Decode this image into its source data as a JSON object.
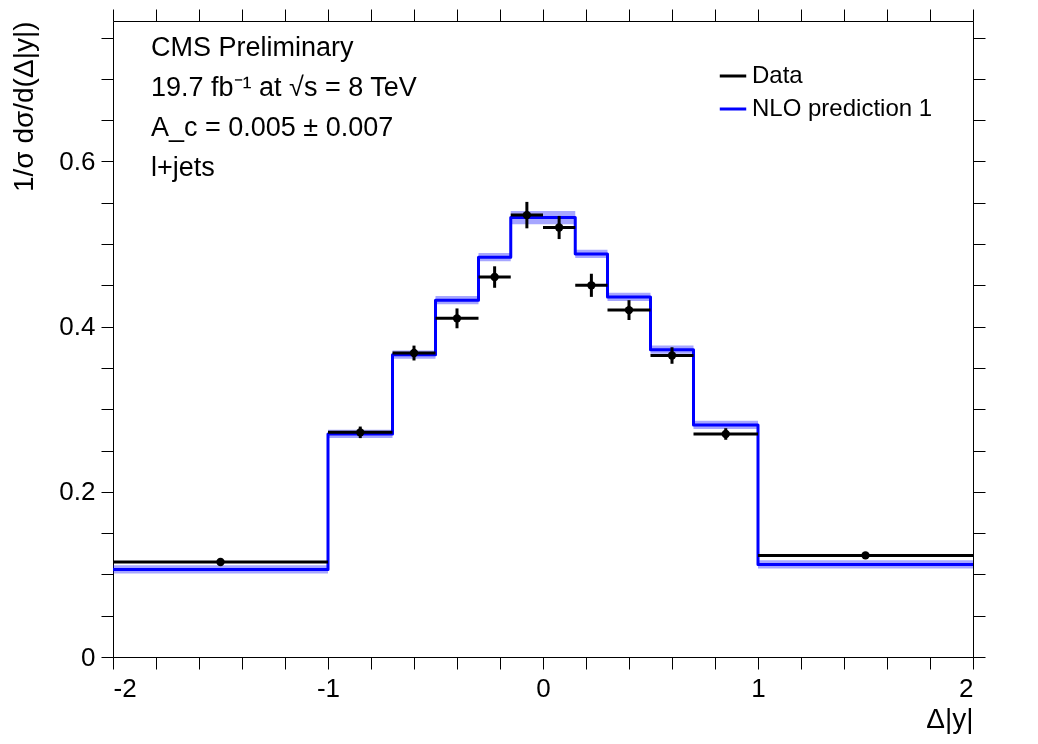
{
  "chart_data": {
    "type": "step",
    "xlabel": "Δ|y|",
    "ylabel": "1/σ dσ/d(Δ|y|)",
    "annotations": [
      "CMS Preliminary",
      "19.7 fb⁻¹ at √s = 8 TeV",
      "A_c = 0.005 ± 0.007",
      "l+jets"
    ],
    "series": [
      {
        "name": "Data",
        "type": "scatter",
        "color": "#000000",
        "marker": "circle",
        "x": [
          -1.5,
          -0.85,
          -0.6,
          -0.4,
          -0.225,
          -0.075,
          0.075,
          0.225,
          0.4,
          0.6,
          0.85,
          1.5
        ],
        "values": [
          0.115,
          0.272,
          0.368,
          0.41,
          0.46,
          0.535,
          0.52,
          0.45,
          0.42,
          0.365,
          0.27,
          0.123
        ],
        "errors": [
          0.003,
          0.007,
          0.009,
          0.012,
          0.013,
          0.016,
          0.014,
          0.014,
          0.012,
          0.01,
          0.007,
          0.003
        ],
        "xerrors": [
          0.5,
          0.15,
          0.1,
          0.1,
          0.075,
          0.075,
          0.075,
          0.075,
          0.1,
          0.1,
          0.15,
          0.5
        ]
      },
      {
        "name": "NLO prediction 1",
        "x": [
          -2,
          -1,
          -0.7,
          -0.5,
          -0.3,
          -0.15,
          0,
          0.15,
          0.3,
          0.5,
          0.7,
          1
        ],
        "color": "#0000ff",
        "values": [
          0.106,
          0.27,
          0.366,
          0.432,
          0.484,
          0.532,
          0.532,
          0.488,
          0.436,
          0.372,
          0.281,
          0.112
        ],
        "lower": [
          0.101,
          0.265,
          0.361,
          0.427,
          0.479,
          0.524,
          0.524,
          0.483,
          0.431,
          0.367,
          0.276,
          0.107
        ],
        "upper": [
          0.111,
          0.275,
          0.371,
          0.437,
          0.489,
          0.54,
          0.54,
          0.493,
          0.441,
          0.377,
          0.286,
          0.117
        ]
      }
    ],
    "xlim": [
      -2,
      2
    ],
    "ylim": [
      0,
      0.77
    ],
    "xticks": [
      -2,
      {
        "value": -1.8,
        "label": null
      },
      {
        "value": -1.6,
        "label": null
      },
      {
        "value": -1.4,
        "label": null
      },
      {
        "value": -1.2,
        "label": null
      },
      -1,
      {
        "value": -0.8,
        "label": null
      },
      {
        "value": -0.6,
        "label": null
      },
      {
        "value": -0.4,
        "label": null
      },
      {
        "value": -0.2,
        "label": null
      },
      0,
      {
        "value": 0.2,
        "label": null
      },
      {
        "value": 0.4,
        "label": null
      },
      {
        "value": 0.6,
        "label": null
      },
      {
        "value": 0.8,
        "label": null
      },
      1,
      {
        "value": 1.2,
        "label": null
      },
      {
        "value": 1.4,
        "label": null
      },
      {
        "value": 1.6,
        "label": null
      },
      {
        "value": 1.8,
        "label": null
      },
      2
    ],
    "yticks": [
      0,
      {
        "value": 0.05,
        "label": null
      },
      {
        "value": 0.1,
        "label": null
      },
      {
        "value": 0.15,
        "label": null
      },
      0.2,
      {
        "value": 0.25,
        "label": null
      },
      {
        "value": 0.3,
        "label": null
      },
      {
        "value": 0.35,
        "label": null
      },
      0.4,
      {
        "value": 0.45,
        "label": null
      },
      {
        "value": 0.5,
        "label": null
      },
      {
        "value": 0.55,
        "label": null
      },
      0.6,
      {
        "value": 0.65,
        "label": null
      },
      {
        "value": 0.7,
        "label": null
      },
      {
        "value": 0.75,
        "label": null
      }
    ],
    "grid": false,
    "legend": "top right"
  }
}
